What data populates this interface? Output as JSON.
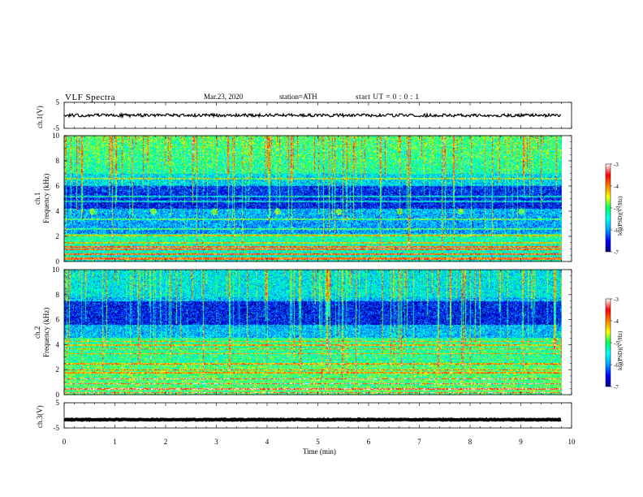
{
  "header": {
    "title": "VLF  Spectra",
    "date": "Mar.23, 2020",
    "station": "station=ATH",
    "start": "start  UT  =    0 : 0  : 1"
  },
  "chart_data": [
    {
      "type": "line",
      "name": "ch1-waveform",
      "ylabel": "ch.1(V)",
      "ylim": [
        -5,
        5
      ],
      "yticks": [
        "5",
        "-5"
      ],
      "xlim": [
        0,
        10
      ],
      "x_end": 9.8,
      "level": 0,
      "noise_amplitude": 0.6
    },
    {
      "type": "heatmap",
      "name": "ch1-spectrogram",
      "ylabel": "ch.1\nFrequency (kHz)",
      "ylim": [
        0,
        10
      ],
      "yticks": [
        "0",
        "2",
        "4",
        "6",
        "8",
        "10"
      ],
      "xlim": [
        0,
        10
      ],
      "x_end": 9.8,
      "colorbar": {
        "label": "log(PSD)(V²/Hz)",
        "range": [
          -7,
          -3
        ],
        "ticks": [
          "-3",
          "-4",
          "-5",
          "-6",
          "-7"
        ]
      },
      "bright_lines_khz": [
        0.2,
        0.3,
        0.6,
        1.0,
        1.2,
        1.5,
        2.1,
        2.6,
        3.4,
        4.8,
        5.2,
        6.6
      ],
      "dark_band_khz": [
        4.2,
        6.0
      ],
      "blob_minutes": [
        0.55,
        1.75,
        2.95,
        4.2,
        5.4,
        6.6,
        7.8,
        9.0
      ],
      "blob_khz": 4.0
    },
    {
      "type": "heatmap",
      "name": "ch2-spectrogram",
      "ylabel": "ch.2\nFrequency (kHz)",
      "ylim": [
        0,
        10
      ],
      "yticks": [
        "0",
        "2",
        "4",
        "6",
        "8",
        "10"
      ],
      "xlim": [
        0,
        10
      ],
      "x_end": 9.8,
      "colorbar": {
        "label": "log(PSD)(V²/Hz)",
        "range": [
          -7,
          -3
        ],
        "ticks": [
          "-3",
          "-4",
          "-5",
          "-6",
          "-7"
        ]
      },
      "bright_lines_khz": [
        0.2,
        0.5,
        0.9,
        1.3,
        1.8,
        2.0,
        2.5,
        3.3,
        3.7,
        4.0,
        4.3
      ],
      "dark_band_khz": [
        5.6,
        7.5
      ]
    },
    {
      "type": "line",
      "name": "ch3-waveform",
      "ylabel": "ch.3(V)",
      "ylim": [
        -5,
        5
      ],
      "yticks": [
        "5",
        "-5"
      ],
      "xlim": [
        0,
        10
      ],
      "x_end": 9.8,
      "level": -1.7,
      "noise_amplitude": 0.15
    }
  ],
  "xaxis": {
    "label": "Time  (min)",
    "ticks": [
      "0",
      "1",
      "2",
      "3",
      "4",
      "5",
      "6",
      "7",
      "8",
      "9",
      "10"
    ]
  },
  "colors": {
    "scale": [
      "#000080",
      "#0000ff",
      "#00a0ff",
      "#00ffff",
      "#00ff60",
      "#ffff00",
      "#ff8000",
      "#ff0000",
      "#ffffff"
    ],
    "trace": "#000000"
  }
}
